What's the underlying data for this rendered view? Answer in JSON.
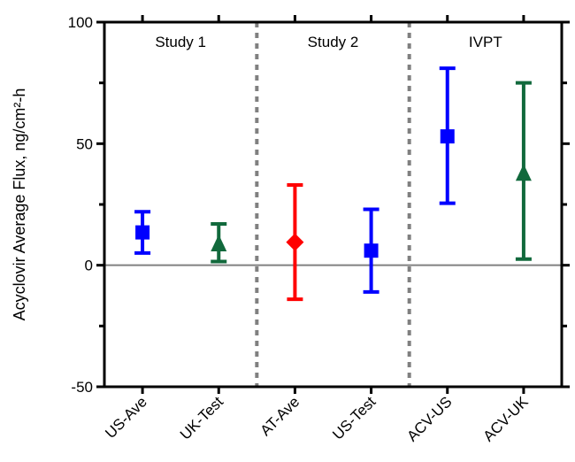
{
  "chart_data": {
    "type": "scatter",
    "title": "",
    "xlabel": "",
    "ylabel": "Acyclovir Average Flux, ng/cm²-h",
    "ylim": [
      -50,
      100
    ],
    "yticks": [
      -50,
      0,
      50,
      100
    ],
    "ytick_labels": [
      "-50",
      "0",
      "50",
      "100"
    ],
    "reference_line_y": 0,
    "grid": false,
    "legend": "none",
    "categories": [
      "US-Ave",
      "UK-Test",
      "AT-Ave",
      "US-Test",
      "ACV-US",
      "ACV-UK"
    ],
    "groups": [
      {
        "label": "Study 1",
        "categories": [
          "US-Ave",
          "UK-Test"
        ]
      },
      {
        "label": "Study 2",
        "categories": [
          "AT-Ave",
          "US-Test"
        ]
      },
      {
        "label": "IVPT",
        "categories": [
          "ACV-US",
          "ACV-UK"
        ]
      }
    ],
    "points": [
      {
        "category": "US-Ave",
        "value": 13.5,
        "lower": 5,
        "upper": 22,
        "marker": "square",
        "color": "#0000ff"
      },
      {
        "category": "UK-Test",
        "value": 9,
        "lower": 1.5,
        "upper": 17,
        "marker": "triangle",
        "color": "#11693c"
      },
      {
        "category": "AT-Ave",
        "value": 9.5,
        "lower": -14,
        "upper": 33,
        "marker": "diamond",
        "color": "#ff0000"
      },
      {
        "category": "US-Test",
        "value": 6,
        "lower": -11,
        "upper": 23,
        "marker": "square",
        "color": "#0000ff"
      },
      {
        "category": "ACV-US",
        "value": 53,
        "lower": 25.5,
        "upper": 81,
        "marker": "square",
        "color": "#0000ff"
      },
      {
        "category": "ACV-UK",
        "value": 38,
        "lower": 2.5,
        "upper": 75,
        "marker": "triangle",
        "color": "#11693c"
      }
    ],
    "colors": {
      "axis": "#000000",
      "divider": "#808080",
      "zero_line": "#808080"
    }
  }
}
